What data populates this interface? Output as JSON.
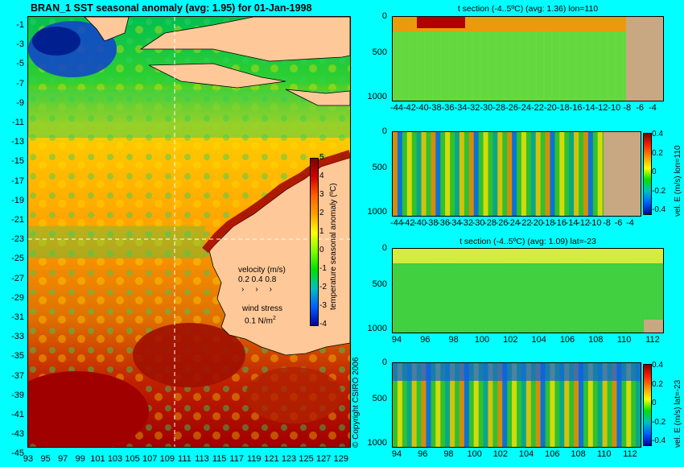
{
  "main_title": "BRAN_1 SST seasonal anomaly (avg: 1.95) for 01-Jan-1998",
  "map": {
    "ylabels": [
      "-1",
      "-3",
      "-5",
      "-7",
      "-9",
      "-11",
      "-13",
      "-15",
      "-17",
      "-19",
      "-21",
      "-23",
      "-25",
      "-27",
      "-29",
      "-31",
      "-33",
      "-35",
      "-37",
      "-39",
      "-41",
      "-43",
      "-45"
    ],
    "xlabels": [
      "93",
      "95",
      "97",
      "99",
      "101",
      "103",
      "105",
      "107",
      "109",
      "111",
      "113",
      "115",
      "117",
      "119",
      "121",
      "123",
      "125",
      "127",
      "129"
    ],
    "colorbar_label": "temperature seasonal anomaly (ºC)",
    "colorbar_ticks": [
      "5",
      "4",
      "3",
      "2",
      "1",
      "0",
      "-1",
      "-2",
      "-3",
      "-4"
    ],
    "velocity_title": "velocity (m/s)",
    "velocity_scale": "0.2 0.4 0.8",
    "wind_title": "wind stress",
    "wind_scale": "0.1 N/m",
    "wind_scale_exp": "2",
    "copyright": "© Copyright CSIRO 2006"
  },
  "panels": [
    {
      "title": "t section (-4..5ºC) (avg: 1.36) lon=110",
      "yticks": [
        "0",
        "500",
        "1000"
      ],
      "xticks": [
        "-44",
        "-42",
        "-40",
        "-38",
        "-36",
        "-34",
        "-32",
        "-30",
        "-28",
        "-26",
        "-24",
        "-22",
        "-20",
        "-18",
        "-16",
        "-14",
        "-12",
        "-10",
        "-8",
        "-6",
        "-4"
      ]
    },
    {
      "title": "",
      "yticks": [
        "0",
        "500",
        "1000"
      ],
      "xticks": [
        "-44",
        "-42",
        "-40",
        "-38",
        "-36",
        "-34",
        "-32",
        "-30",
        "-28",
        "-26",
        "-24",
        "-22",
        "-20",
        "-18",
        "-16",
        "-14",
        "-12",
        "-10",
        "-8",
        "-6",
        "-4"
      ],
      "colorbar_label": "vel. E (m/s) lon=110",
      "colorbar_ticks": [
        "0.4",
        "0.2",
        "0",
        "-0.2",
        "-0.4"
      ]
    },
    {
      "title": "t section (-4..5ºC) (avg: 1.09) lat=-23",
      "yticks": [
        "0",
        "500",
        "1000"
      ],
      "xticks": [
        "94",
        "96",
        "98",
        "100",
        "102",
        "104",
        "106",
        "108",
        "110",
        "112"
      ]
    },
    {
      "title": "",
      "yticks": [
        "0",
        "500",
        "1000"
      ],
      "xticks": [
        "94",
        "96",
        "98",
        "100",
        "102",
        "104",
        "106",
        "108",
        "110",
        "112"
      ],
      "colorbar_label": "vel. E (m/s) lat=-23",
      "colorbar_ticks": [
        "0.4",
        "0.2",
        "0",
        "-0.2",
        "-0.4"
      ]
    }
  ],
  "colors": {
    "background": "#00ffff",
    "land": "#ffc898",
    "section_land": "#c8a882"
  },
  "chart_data": [
    {
      "type": "heatmap",
      "title": "BRAN_1 SST seasonal anomaly (avg: 1.95) for 01-Jan-1998",
      "xlabel": "",
      "ylabel": "",
      "xlim": [
        93,
        129
      ],
      "ylim": [
        -45,
        -1
      ],
      "colorbar": {
        "label": "temperature seasonal anomaly (ºC)",
        "range": [
          -4,
          5
        ]
      },
      "avg": 1.95
    },
    {
      "type": "heatmap",
      "title": "t section (-4..5ºC) (avg: 1.36) lon=110",
      "x_range": [
        -45,
        -3
      ],
      "depth_range": [
        0,
        1050
      ],
      "avg": 1.36
    },
    {
      "type": "heatmap",
      "title": "",
      "x_range": [
        -45,
        -3
      ],
      "depth_range": [
        0,
        1050
      ],
      "colorbar": {
        "label": "vel. E (m/s) lon=110",
        "range": [
          -0.4,
          0.4
        ]
      }
    },
    {
      "type": "heatmap",
      "title": "t section (-4..5ºC) (avg: 1.09) lat=-23",
      "x_range": [
        93,
        113.5
      ],
      "depth_range": [
        0,
        1050
      ],
      "avg": 1.09
    },
    {
      "type": "heatmap",
      "title": "",
      "x_range": [
        93,
        113.5
      ],
      "depth_range": [
        0,
        1050
      ],
      "colorbar": {
        "label": "vel. E (m/s) lat=-23",
        "range": [
          -0.4,
          0.4
        ]
      }
    }
  ]
}
